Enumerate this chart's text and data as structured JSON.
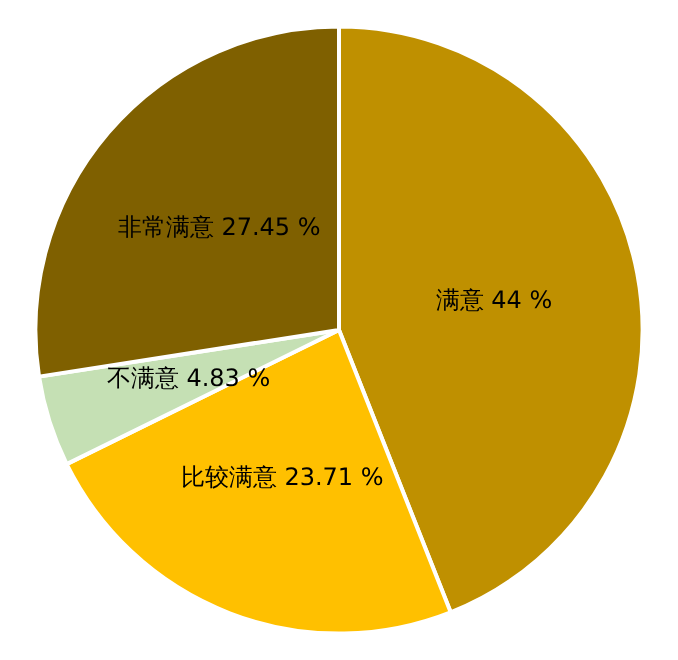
{
  "chart_data": {
    "type": "pie",
    "categories": [
      "满意",
      "比较满意",
      "不满意",
      "非常满意"
    ],
    "values": [
      44,
      23.71,
      4.83,
      27.45
    ],
    "value_labels": [
      "44 %",
      "23.71 %",
      "4.83 %",
      "27.45 %"
    ],
    "colors": [
      "#bf9000",
      "#ffc000",
      "#c5e0b4",
      "#7f6000"
    ],
    "legend": false
  }
}
